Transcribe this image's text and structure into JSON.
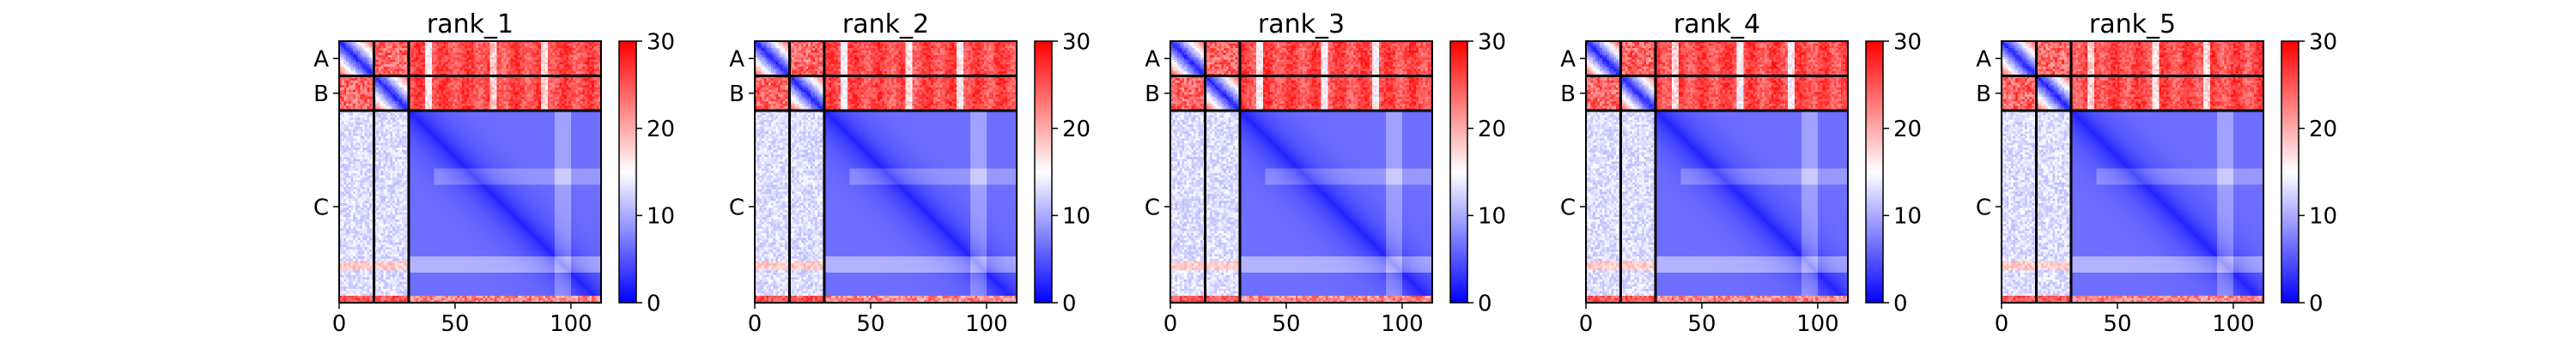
{
  "chart_data": [
    {
      "type": "heatmap",
      "title": "rank_1",
      "chains": [
        "A",
        "B",
        "C"
      ],
      "chain_boundaries": [
        0,
        15,
        30,
        113
      ],
      "xticks": [
        0,
        50,
        100
      ],
      "x_range": [
        0,
        113
      ],
      "colorbar": {
        "min": 0,
        "max": 30,
        "ticks": [
          0,
          10,
          20,
          30
        ],
        "colormap": "bwr"
      }
    },
    {
      "type": "heatmap",
      "title": "rank_2",
      "chains": [
        "A",
        "B",
        "C"
      ],
      "chain_boundaries": [
        0,
        15,
        30,
        113
      ],
      "xticks": [
        0,
        50,
        100
      ],
      "x_range": [
        0,
        113
      ],
      "colorbar": {
        "min": 0,
        "max": 30,
        "ticks": [
          0,
          10,
          20,
          30
        ],
        "colormap": "bwr"
      }
    },
    {
      "type": "heatmap",
      "title": "rank_3",
      "chains": [
        "A",
        "B",
        "C"
      ],
      "chain_boundaries": [
        0,
        15,
        30,
        113
      ],
      "xticks": [
        0,
        50,
        100
      ],
      "x_range": [
        0,
        113
      ],
      "colorbar": {
        "min": 0,
        "max": 30,
        "ticks": [
          0,
          10,
          20,
          30
        ],
        "colormap": "bwr"
      }
    },
    {
      "type": "heatmap",
      "title": "rank_4",
      "chains": [
        "A",
        "B",
        "C"
      ],
      "chain_boundaries": [
        0,
        15,
        30,
        113
      ],
      "xticks": [
        0,
        50,
        100
      ],
      "x_range": [
        0,
        113
      ],
      "colorbar": {
        "min": 0,
        "max": 30,
        "ticks": [
          0,
          10,
          20,
          30
        ],
        "colormap": "bwr"
      }
    },
    {
      "type": "heatmap",
      "title": "rank_5",
      "chains": [
        "A",
        "B",
        "C"
      ],
      "chain_boundaries": [
        0,
        15,
        30,
        113
      ],
      "xticks": [
        0,
        50,
        100
      ],
      "x_range": [
        0,
        113
      ],
      "colorbar": {
        "min": 0,
        "max": 30,
        "ticks": [
          0,
          10,
          20,
          30
        ],
        "colormap": "bwr"
      }
    }
  ]
}
